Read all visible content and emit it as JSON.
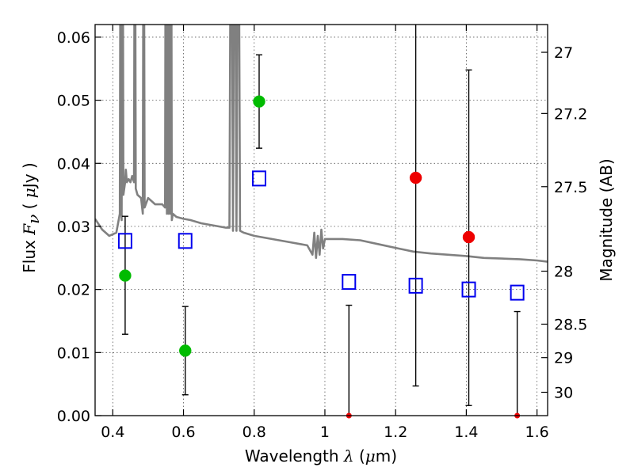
{
  "chart_data": {
    "type": "scatter",
    "xlabel": {
      "pre": "Wavelength  ",
      "sym": "λ",
      "post": " (",
      "mu": "μ",
      "unit": "m)"
    },
    "ylabel": {
      "pre": "Flux  ",
      "sym": "F",
      "sub": "ν",
      "mid": "  ( ",
      "mu": "μ",
      "unit": "Jy )"
    },
    "y2label": "Magnitude (AB)",
    "xlim": [
      0.35,
      1.63
    ],
    "ylim": [
      0.0,
      0.062
    ],
    "xticks": [
      {
        "value": 0.4,
        "label": "0.4"
      },
      {
        "value": 0.6,
        "label": "0.6"
      },
      {
        "value": 0.8,
        "label": "0.8"
      },
      {
        "value": 1.0,
        "label": "1"
      },
      {
        "value": 1.2,
        "label": "1.2"
      },
      {
        "value": 1.4,
        "label": "1.4"
      },
      {
        "value": 1.6,
        "label": "1.6"
      }
    ],
    "yticks": [
      {
        "value": 0.0,
        "label": "0.00"
      },
      {
        "value": 0.01,
        "label": "0.01"
      },
      {
        "value": 0.02,
        "label": "0.02"
      },
      {
        "value": 0.03,
        "label": "0.03"
      },
      {
        "value": 0.04,
        "label": "0.04"
      },
      {
        "value": 0.05,
        "label": "0.05"
      },
      {
        "value": 0.06,
        "label": "0.06"
      }
    ],
    "y2ticks": [
      {
        "flux": 0.0576,
        "label": "27"
      },
      {
        "flux": 0.0479,
        "label": "27.2"
      },
      {
        "flux": 0.0363,
        "label": "27.5"
      },
      {
        "flux": 0.0229,
        "label": "28"
      },
      {
        "flux": 0.0145,
        "label": "28.5"
      },
      {
        "flux": 0.0092,
        "label": "29"
      },
      {
        "flux": 0.0037,
        "label": "30"
      }
    ],
    "grid": true,
    "colors": {
      "detection_green": "#00bb00",
      "detection_red": "#ee0000",
      "model_square": "#0000ee",
      "template": "#808080",
      "errorbar": "#000000"
    },
    "measured_points": [
      {
        "x": 0.435,
        "y": 0.0222,
        "err_lo": 0.0129,
        "err_hi": 0.0316,
        "color": "green"
      },
      {
        "x": 0.605,
        "y": 0.0103,
        "err_lo": 0.0033,
        "err_hi": 0.0173,
        "color": "green"
      },
      {
        "x": 0.814,
        "y": 0.0498,
        "err_lo": 0.0424,
        "err_hi": 0.0572,
        "color": "green"
      },
      {
        "x": 1.068,
        "y": 0.0,
        "err_lo": 0.0,
        "err_hi": 0.0175,
        "color": "red"
      },
      {
        "x": 1.257,
        "y": 0.0377,
        "err_lo": 0.0047,
        "err_hi": 0.07,
        "color": "red"
      },
      {
        "x": 1.407,
        "y": 0.0283,
        "err_lo": 0.0016,
        "err_hi": 0.0548,
        "color": "red"
      },
      {
        "x": 1.544,
        "y": 0.0,
        "err_lo": 0.0,
        "err_hi": 0.0165,
        "color": "red"
      }
    ],
    "model_points": [
      {
        "x": 0.435,
        "y": 0.0277
      },
      {
        "x": 0.605,
        "y": 0.0277
      },
      {
        "x": 0.814,
        "y": 0.0376
      },
      {
        "x": 1.068,
        "y": 0.0212
      },
      {
        "x": 1.257,
        "y": 0.0206
      },
      {
        "x": 1.407,
        "y": 0.02
      },
      {
        "x": 1.544,
        "y": 0.0195
      }
    ],
    "template_spectrum": {
      "x": [
        0.35,
        0.37,
        0.39,
        0.41,
        0.42,
        0.4225,
        0.425,
        0.4275,
        0.43,
        0.435,
        0.437,
        0.44,
        0.445,
        0.45,
        0.455,
        0.46,
        0.4625,
        0.465,
        0.47,
        0.48,
        0.485,
        0.4875,
        0.49,
        0.5,
        0.52,
        0.54,
        0.548,
        0.55,
        0.553,
        0.555,
        0.558,
        0.56,
        0.563,
        0.565,
        0.567,
        0.57,
        0.58,
        0.6,
        0.62,
        0.65,
        0.7,
        0.72,
        0.73,
        0.735,
        0.74,
        0.745,
        0.75,
        0.755,
        0.76,
        0.77,
        0.8,
        0.85,
        0.9,
        0.95,
        0.965,
        0.97,
        0.975,
        0.98,
        0.985,
        0.99,
        0.995,
        1.0,
        1.05,
        1.1,
        1.15,
        1.2,
        1.25,
        1.3,
        1.35,
        1.4,
        1.45,
        1.5,
        1.55,
        1.6,
        1.63
      ],
      "y": [
        0.0312,
        0.0295,
        0.0285,
        0.029,
        0.032,
        0.1,
        0.031,
        0.1,
        0.035,
        0.037,
        0.039,
        0.037,
        0.0375,
        0.037,
        0.038,
        0.037,
        0.1,
        0.036,
        0.035,
        0.0345,
        0.032,
        0.1,
        0.033,
        0.0345,
        0.0335,
        0.0335,
        0.033,
        0.1,
        0.032,
        0.1,
        0.032,
        0.1,
        0.032,
        0.1,
        0.031,
        0.032,
        0.0315,
        0.0312,
        0.031,
        0.0305,
        0.03,
        0.0298,
        0.0298,
        0.1,
        0.0293,
        0.1,
        0.0293,
        0.1,
        0.0293,
        0.029,
        0.0285,
        0.028,
        0.0275,
        0.027,
        0.0255,
        0.029,
        0.025,
        0.0285,
        0.0255,
        0.0295,
        0.0265,
        0.028,
        0.028,
        0.0278,
        0.0272,
        0.0266,
        0.026,
        0.0257,
        0.0255,
        0.0253,
        0.025,
        0.0249,
        0.0248,
        0.0246,
        0.0244
      ]
    }
  }
}
